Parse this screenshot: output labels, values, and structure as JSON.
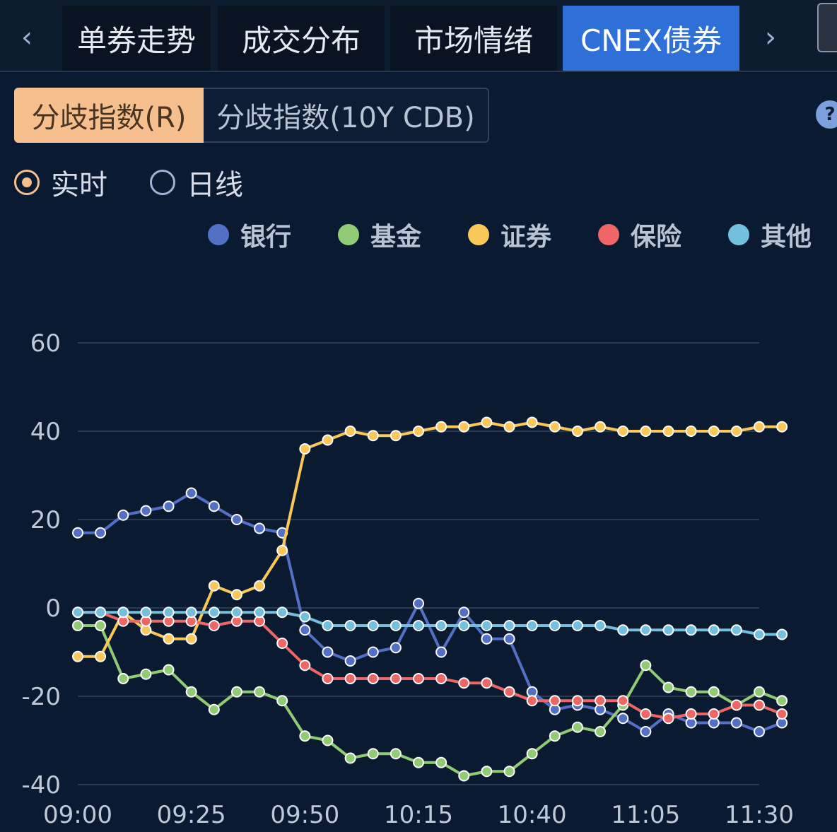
{
  "tabs": {
    "prev_icon": "chevron-left-icon",
    "next_icon": "chevron-right-icon",
    "items": [
      {
        "label": "单券走势"
      },
      {
        "label": "成交分布"
      },
      {
        "label": "市场情绪"
      },
      {
        "label": "CNEX债券"
      }
    ],
    "active": "CNEX债券"
  },
  "segmented": {
    "options": [
      {
        "label": "分歧指数(R)"
      },
      {
        "label": "分歧指数(10Y CDB)"
      }
    ],
    "active": "分歧指数(R)"
  },
  "help_icon": "?",
  "radio": {
    "options": [
      {
        "label": "实时"
      },
      {
        "label": "日线"
      }
    ],
    "selected": "实时"
  },
  "chart_data": {
    "type": "line",
    "title": "",
    "xlabel": "",
    "ylabel": "",
    "x": [
      "09:00",
      "09:05",
      "09:10",
      "09:15",
      "09:20",
      "09:25",
      "09:30",
      "09:35",
      "09:40",
      "09:45",
      "09:50",
      "09:55",
      "10:00",
      "10:05",
      "10:10",
      "10:15",
      "10:20",
      "10:25",
      "10:30",
      "10:35",
      "10:40",
      "10:45",
      "10:50",
      "10:55",
      "11:00",
      "11:05",
      "11:10",
      "11:15",
      "11:20",
      "11:25",
      "11:30",
      "11:35"
    ],
    "xticks": [
      "09:00",
      "09:25",
      "09:50",
      "10:15",
      "10:40",
      "11:05",
      "11:30"
    ],
    "yticks": [
      60,
      40,
      20,
      0,
      -20,
      -40
    ],
    "ylim": [
      -40,
      60
    ],
    "grid": true,
    "legend_position": "top",
    "series": [
      {
        "name": "银行",
        "color": "#5470c6",
        "values": [
          17,
          17,
          21,
          22,
          23,
          26,
          23,
          20,
          18,
          17,
          -5,
          -10,
          -12,
          -10,
          -9,
          1,
          -10,
          -1,
          -7,
          -7,
          -19,
          -23,
          -22,
          -23,
          -25,
          -28,
          -24,
          -26,
          -26,
          -26,
          -28,
          -26
        ]
      },
      {
        "name": "基金",
        "color": "#91cc75",
        "values": [
          -4,
          -4,
          -16,
          -15,
          -14,
          -19,
          -23,
          -19,
          -19,
          -21,
          -29,
          -30,
          -34,
          -33,
          -33,
          -35,
          -35,
          -38,
          -37,
          -37,
          -33,
          -29,
          -27,
          -28,
          -22,
          -13,
          -18,
          -19,
          -19,
          -22,
          -19,
          -21
        ]
      },
      {
        "name": "证券",
        "color": "#fac858",
        "values": [
          -11,
          -11,
          -1,
          -5,
          -7,
          -7,
          5,
          3,
          5,
          13,
          36,
          38,
          40,
          39,
          39,
          40,
          41,
          41,
          42,
          41,
          42,
          41,
          40,
          41,
          40,
          40,
          40,
          40,
          40,
          40,
          41,
          41
        ]
      },
      {
        "name": "保险",
        "color": "#ee6666",
        "values": [
          -1,
          -1,
          -3,
          -3,
          -3,
          -3,
          -4,
          -3,
          -3,
          -8,
          -13,
          -16,
          -16,
          -16,
          -16,
          -16,
          -16,
          -17,
          -17,
          -19,
          -21,
          -21,
          -21,
          -21,
          -21,
          -24,
          -25,
          -24,
          -24,
          -22,
          -22,
          -24
        ]
      },
      {
        "name": "其他",
        "color": "#73c0de",
        "values": [
          -1,
          -1,
          -1,
          -1,
          -1,
          -1,
          -1,
          -1,
          -1,
          -1,
          -2,
          -4,
          -4,
          -4,
          -4,
          -4,
          -4,
          -4,
          -4,
          -4,
          -4,
          -4,
          -4,
          -4,
          -5,
          -5,
          -5,
          -5,
          -5,
          -5,
          -6,
          -6
        ]
      }
    ]
  }
}
